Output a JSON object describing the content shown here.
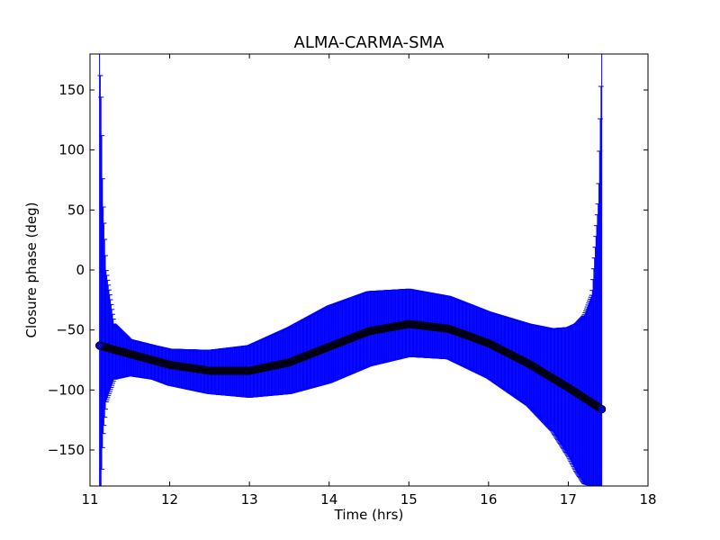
{
  "chart_data": {
    "type": "scatter",
    "title": "ALMA-CARMA-SMA",
    "xlabel": "Time (hrs)",
    "ylabel": "Closure phase (deg)",
    "xlim": [
      11,
      18
    ],
    "ylim": [
      -180,
      180
    ],
    "xticks": [
      "11",
      "12",
      "13",
      "14",
      "15",
      "16",
      "17",
      "18"
    ],
    "yticks": [
      "−150",
      "−100",
      "−50",
      "0",
      "50",
      "100",
      "150"
    ],
    "grid": false,
    "series": [
      {
        "kind": "points",
        "x": [
          11.12,
          11.5,
          12.0,
          12.5,
          13.0,
          13.5,
          14.0,
          14.5,
          15.0,
          15.5,
          16.0,
          16.5,
          17.0,
          17.42
        ],
        "y": [
          -63,
          -70,
          -79,
          -84,
          -84,
          -77,
          -64,
          -51,
          -45,
          -49,
          -61,
          -78,
          -98,
          -116
        ],
        "marker": "circle",
        "color": "#000022"
      },
      {
        "kind": "errorband",
        "x": [
          11.12,
          11.14,
          11.16,
          11.2,
          11.3,
          11.5,
          11.8,
          12.0,
          12.5,
          13.0,
          13.5,
          14.0,
          14.5,
          15.0,
          15.5,
          16.0,
          16.5,
          16.8,
          17.0,
          17.1,
          17.2,
          17.3,
          17.38,
          17.42
        ],
        "upper": [
          180,
          140,
          60,
          0,
          -45,
          -58,
          -63,
          -66,
          -67,
          -63,
          -48,
          -30,
          -18,
          -16,
          -22,
          -35,
          -45,
          -49,
          -48,
          -45,
          -38,
          -20,
          60,
          180
        ],
        "lower": [
          -180,
          -180,
          -140,
          -110,
          -91,
          -88,
          -91,
          -96,
          -103,
          -106,
          -103,
          -94,
          -80,
          -72,
          -74,
          -90,
          -113,
          -134,
          -155,
          -168,
          -178,
          -180,
          -180,
          -180
        ],
        "color": "#0000ff"
      }
    ]
  }
}
